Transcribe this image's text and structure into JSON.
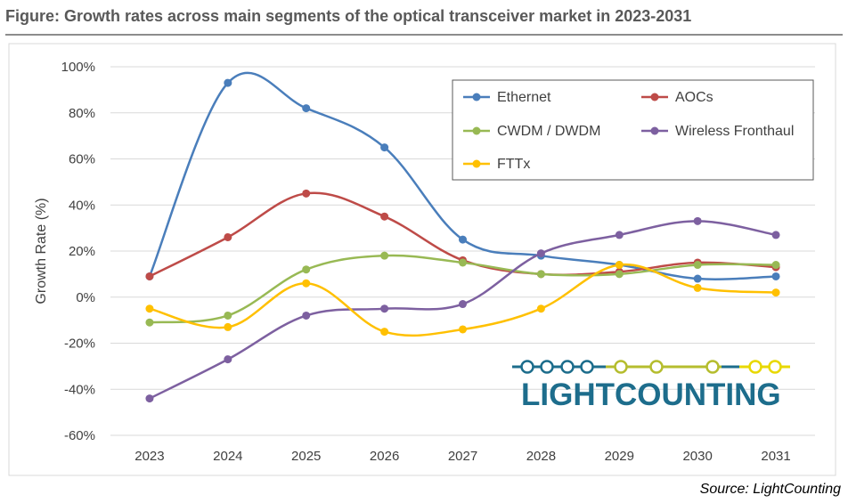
{
  "figure": {
    "title": "Figure: Growth rates across main segments of the optical transceiver market in 2023-2031",
    "source": "Source: LightCounting"
  },
  "logo": {
    "text": "LIGHTCOUNTING",
    "line_color": "#1d6d8c",
    "accent_color": "#b5bd2e",
    "yellow_color": "#e8d800"
  },
  "chart_data": {
    "type": "line",
    "smooth": true,
    "x": [
      "2023",
      "2024",
      "2025",
      "2026",
      "2027",
      "2028",
      "2029",
      "2030",
      "2031"
    ],
    "ylabel": "Growth Rate (%)",
    "ylim": [
      -60,
      100
    ],
    "yticks": [
      -60,
      -40,
      -20,
      0,
      20,
      40,
      60,
      80,
      100
    ],
    "ytick_labels": [
      "-60%",
      "-40%",
      "-20%",
      "0%",
      "20%",
      "40%",
      "60%",
      "80%",
      "100%"
    ],
    "grid": "horizontal",
    "legend": "top-right",
    "series": [
      {
        "name": "Ethernet",
        "color": "#4a7ebb",
        "values": [
          9,
          93,
          82,
          65,
          25,
          18,
          14,
          8,
          9
        ]
      },
      {
        "name": "AOCs",
        "color": "#be4b48",
        "values": [
          9,
          26,
          45,
          35,
          16,
          10,
          11,
          15,
          13
        ]
      },
      {
        "name": "CWDM / DWDM",
        "color": "#98b954",
        "values": [
          -11,
          -8,
          12,
          18,
          15,
          10,
          10,
          14,
          14
        ]
      },
      {
        "name": "Wireless Fronthaul",
        "color": "#7d60a0",
        "values": [
          -44,
          -27,
          -8,
          -5,
          -3,
          19,
          27,
          33,
          27
        ]
      },
      {
        "name": "FTTx",
        "color": "#ffc000",
        "values": [
          -5,
          -13,
          6,
          -15,
          -14,
          -5,
          14,
          4,
          2
        ]
      }
    ]
  }
}
